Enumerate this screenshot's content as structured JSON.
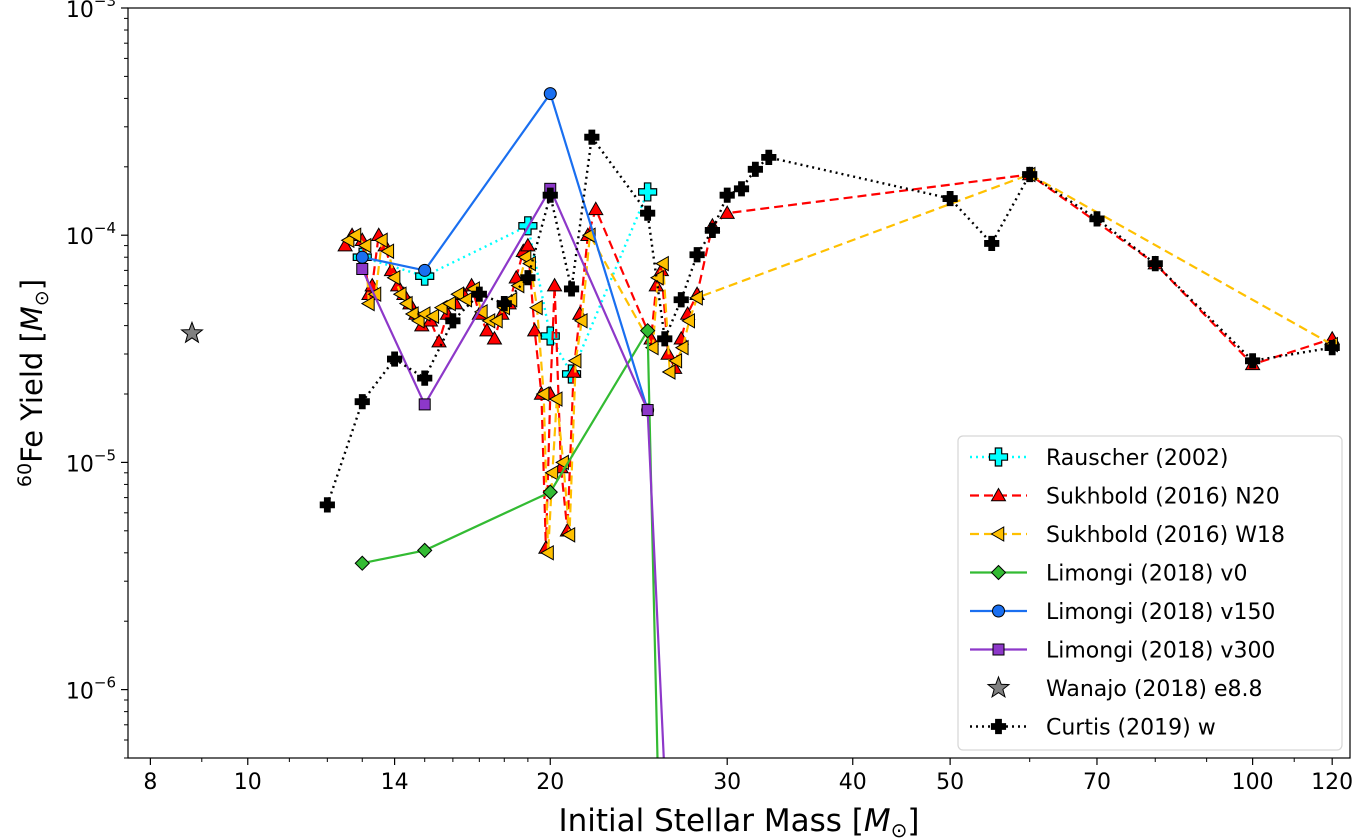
{
  "chart_data": {
    "type": "line",
    "title": "",
    "xlabel": {
      "main": "Initial Stellar Mass [",
      "sym": "M",
      "sub": "⊙",
      "end": "]"
    },
    "ylabel": {
      "sup": "60",
      "main": "Fe Yield [",
      "sym": "M",
      "sub": "⊙",
      "end": "]"
    },
    "xscale": "log",
    "yscale": "log",
    "xlim": [
      7.6,
      125
    ],
    "ylim": [
      5e-07,
      0.001
    ],
    "xticks": [
      8,
      10,
      14,
      20,
      30,
      40,
      50,
      70,
      100,
      120
    ],
    "xtick_labels": [
      "8",
      "10",
      "14",
      "20",
      "30",
      "40",
      "50",
      "70",
      "100",
      "120"
    ],
    "yticks": [
      1e-06,
      1e-05,
      0.0001,
      0.001
    ],
    "ytick_labels": [
      {
        "base": "10",
        "exp": "−6"
      },
      {
        "base": "10",
        "exp": "−5"
      },
      {
        "base": "10",
        "exp": "−4"
      },
      {
        "base": "10",
        "exp": "−3"
      }
    ],
    "grid": false,
    "legend_position": "bottom-right",
    "series": [
      {
        "name": "Rauscher (2002)",
        "color": "#00ffff",
        "line": "dotted",
        "marker": "plus",
        "x": [
          13,
          15,
          19,
          20,
          21,
          25
        ],
        "y": [
          8e-05,
          6.6e-05,
          0.00011,
          3.6e-05,
          2.45e-05,
          0.000155
        ]
      },
      {
        "name": "Sukhbold (2016) N20",
        "color": "#ff0000",
        "line": "dashed",
        "marker": "triangle-up",
        "x": [
          12.5,
          12.7,
          13.0,
          13.2,
          13.3,
          13.5,
          13.7,
          13.9,
          14.1,
          14.3,
          14.5,
          14.7,
          14.9,
          15.2,
          15.5,
          15.8,
          16.1,
          16.4,
          16.7,
          17.0,
          17.3,
          17.6,
          17.9,
          18.2,
          18.5,
          18.8,
          19.0,
          19.3,
          19.6,
          19.8,
          20.0,
          20.2,
          20.5,
          20.8,
          21.1,
          21.4,
          21.8,
          22.2,
          25.2,
          25.5,
          25.8,
          26.2,
          26.6,
          27.0,
          27.4,
          28,
          29,
          30,
          60,
          80,
          100,
          120
        ],
        "y": [
          9e-05,
          0.0001,
          9.5e-05,
          5.5e-05,
          6e-05,
          0.0001,
          9e-05,
          7e-05,
          6e-05,
          5.5e-05,
          5e-05,
          4.5e-05,
          4e-05,
          4.2e-05,
          3.4e-05,
          4.5e-05,
          5e-05,
          5.5e-05,
          6e-05,
          4.5e-05,
          3.8e-05,
          3.5e-05,
          4.5e-05,
          5e-05,
          6.5e-05,
          8.5e-05,
          9e-05,
          3.8e-05,
          2e-05,
          4.2e-06,
          2e-05,
          6e-05,
          9.5e-06,
          5e-06,
          2.5e-05,
          4.5e-05,
          0.0001,
          0.00013,
          3.5e-05,
          6e-05,
          7e-05,
          3e-05,
          2.6e-05,
          3.5e-05,
          4.5e-05,
          5.5e-05,
          0.00011,
          0.000125,
          0.000185,
          7.5e-05,
          2.7e-05,
          3.5e-05
        ]
      },
      {
        "name": "Sukhbold (2016) W18",
        "color": "#ffc000",
        "line": "dashed",
        "marker": "triangle-left",
        "x": [
          12.6,
          12.8,
          13.1,
          13.2,
          13.4,
          13.6,
          13.8,
          14.0,
          14.2,
          14.4,
          14.6,
          14.8,
          15.0,
          15.3,
          15.6,
          15.9,
          16.2,
          16.5,
          16.8,
          17.1,
          17.4,
          17.7,
          18.0,
          18.3,
          18.6,
          18.9,
          19.1,
          19.4,
          19.7,
          19.9,
          20.1,
          20.3,
          20.6,
          20.9,
          21.2,
          21.5,
          21.9,
          25.3,
          25.6,
          25.9,
          26.3,
          26.7,
          27.1,
          27.5,
          28,
          60,
          120
        ],
        "y": [
          9.5e-05,
          0.0001,
          9e-05,
          5e-05,
          5.5e-05,
          9.5e-05,
          8.5e-05,
          6.5e-05,
          5.5e-05,
          5e-05,
          4.5e-05,
          4.2e-05,
          4.5e-05,
          4.4e-05,
          4.8e-05,
          5e-05,
          5.5e-05,
          5.2e-05,
          5.8e-05,
          4.6e-05,
          4.2e-05,
          4.2e-05,
          4.8e-05,
          5.2e-05,
          6e-05,
          8e-05,
          7.5e-05,
          4.8e-05,
          2e-05,
          4e-06,
          9e-06,
          1.9e-05,
          1e-05,
          4.8e-06,
          2.8e-05,
          4.2e-05,
          0.0001,
          3.2e-05,
          6.5e-05,
          7.5e-05,
          2.5e-05,
          2.8e-05,
          3.2e-05,
          4.2e-05,
          5.3e-05,
          0.000185,
          3.3e-05
        ]
      },
      {
        "name": "Limongi (2018) v0",
        "color": "#33bb33",
        "line": "solid",
        "marker": "diamond",
        "x": [
          13,
          15,
          20,
          25,
          25.6
        ],
        "y": [
          3.6e-06,
          4.1e-06,
          7.4e-06,
          3.8e-05,
          4e-07
        ]
      },
      {
        "name": "Limongi (2018) v150",
        "color": "#1a6ff0",
        "line": "solid",
        "marker": "circle",
        "x": [
          13,
          15,
          20,
          25
        ],
        "y": [
          8e-05,
          7e-05,
          0.00042,
          1.7e-05
        ]
      },
      {
        "name": "Limongi (2018) v300",
        "color": "#8d38c9",
        "line": "solid",
        "marker": "square",
        "x": [
          13,
          15,
          20,
          25,
          26
        ],
        "y": [
          7.1e-05,
          1.8e-05,
          0.00016,
          1.7e-05,
          4e-07
        ]
      },
      {
        "name": "Wanajo (2018) e8.8",
        "color": "#808080",
        "line": "none",
        "marker": "star",
        "x": [
          8.8
        ],
        "y": [
          3.7e-05
        ]
      },
      {
        "name": "Curtis (2019) w",
        "color": "#000000",
        "line": "dotted",
        "marker": "plus-filled",
        "x": [
          12,
          13,
          14,
          15,
          16,
          17,
          18,
          19,
          20,
          21,
          22,
          25,
          26,
          27,
          28,
          29,
          30,
          31,
          32,
          33,
          50,
          55,
          60,
          70,
          80,
          100,
          120
        ],
        "y": [
          6.5e-06,
          1.85e-05,
          2.85e-05,
          2.35e-05,
          4.2e-05,
          5.5e-05,
          5e-05,
          6.5e-05,
          0.00015,
          5.8e-05,
          0.00027,
          0.000125,
          3.5e-05,
          5.2e-05,
          8.2e-05,
          0.000105,
          0.00015,
          0.00016,
          0.000195,
          0.00022,
          0.000145,
          9.2e-05,
          0.000185,
          0.000118,
          7.5e-05,
          2.8e-05,
          3.2e-05
        ]
      }
    ]
  }
}
